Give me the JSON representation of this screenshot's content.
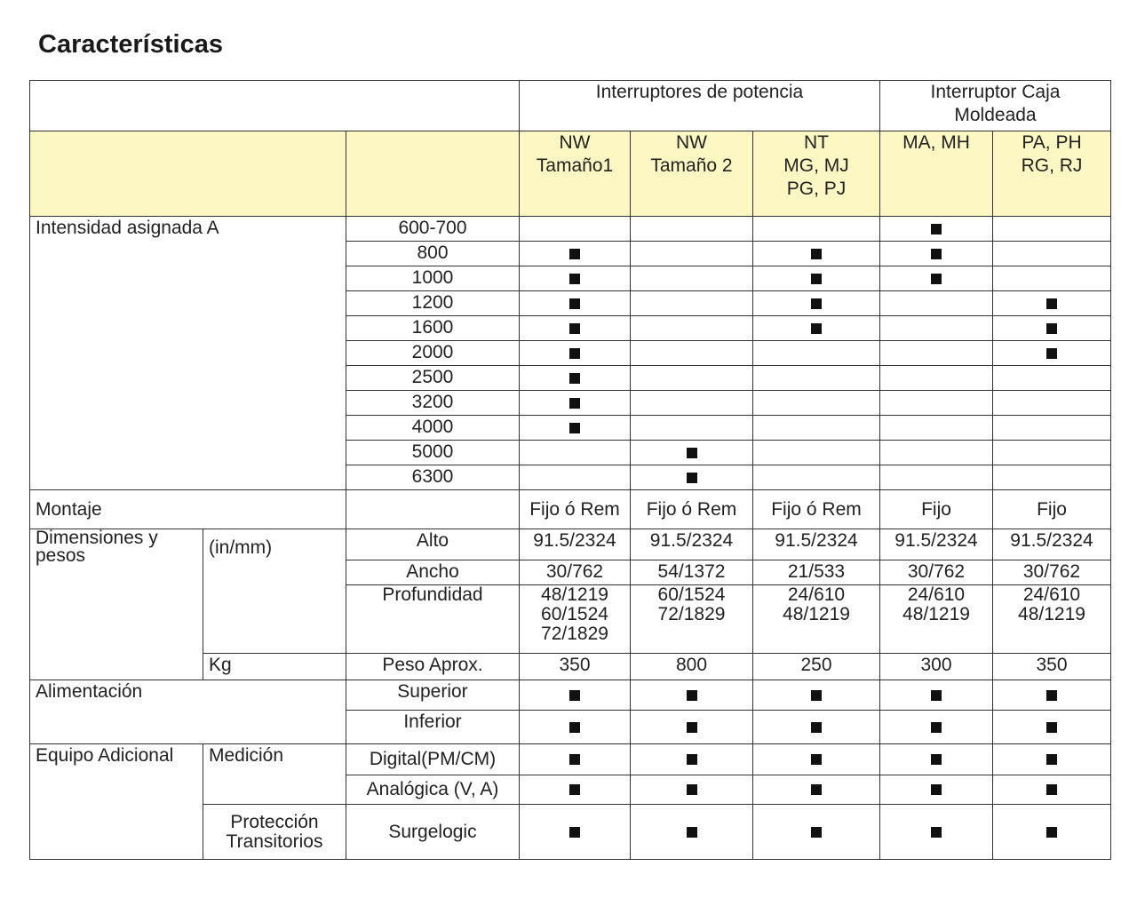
{
  "title": "Características",
  "header": {
    "group1": "Interruptores de potencia",
    "group2": "Interruptor Caja\nMoldeada",
    "columns": [
      "NW\nTamaño1",
      "NW\nTamaño 2",
      "NT\nMG, MJ\nPG, PJ",
      "MA, MH",
      "PA, PH\nRG, RJ"
    ]
  },
  "mark_symbol": "filled-square",
  "intensity": {
    "label": "Intensidad asignada  A",
    "rows": [
      {
        "value": "600-700",
        "marks": [
          0,
          0,
          0,
          1,
          0
        ]
      },
      {
        "value": "800",
        "marks": [
          1,
          0,
          1,
          1,
          0
        ]
      },
      {
        "value": "1000",
        "marks": [
          1,
          0,
          1,
          1,
          0
        ]
      },
      {
        "value": "1200",
        "marks": [
          1,
          0,
          1,
          0,
          1
        ]
      },
      {
        "value": "1600",
        "marks": [
          1,
          0,
          1,
          0,
          1
        ]
      },
      {
        "value": "2000",
        "marks": [
          1,
          0,
          0,
          0,
          1
        ]
      },
      {
        "value": "2500",
        "marks": [
          1,
          0,
          0,
          0,
          0
        ]
      },
      {
        "value": "3200",
        "marks": [
          1,
          0,
          0,
          0,
          0
        ]
      },
      {
        "value": "4000",
        "marks": [
          1,
          0,
          0,
          0,
          0
        ]
      },
      {
        "value": "5000",
        "marks": [
          0,
          1,
          0,
          0,
          0
        ]
      },
      {
        "value": "6300",
        "marks": [
          0,
          1,
          0,
          0,
          0
        ]
      }
    ]
  },
  "mounting": {
    "label": "Montaje",
    "values": [
      "Fijo ó Rem",
      "Fijo ó Rem",
      "Fijo ó Rem",
      "Fijo",
      "Fijo"
    ]
  },
  "dimensions": {
    "label": "Dimensiones y\npesos",
    "unit_label": "(in/mm)",
    "rows": [
      {
        "label": "Alto",
        "values": [
          "91.5/2324",
          "91.5/2324",
          "91.5/2324",
          "91.5/2324",
          "91.5/2324"
        ]
      },
      {
        "label": "Ancho",
        "values": [
          "30/762",
          "54/1372",
          "21/533",
          "30/762",
          "30/762"
        ]
      },
      {
        "label": "Profundidad",
        "values": [
          "48/1219\n60/1524\n72/1829",
          "60/1524\n72/1829",
          "24/610\n48/1219",
          "24/610\n48/1219",
          "24/610\n48/1219"
        ]
      }
    ],
    "kg_label": "Kg",
    "weight": {
      "label": "Peso Aprox.",
      "values": [
        "350",
        "800",
        "250",
        "300",
        "350"
      ]
    }
  },
  "power_supply": {
    "label": "Alimentación",
    "rows": [
      {
        "label": "Superior",
        "marks": [
          1,
          1,
          1,
          1,
          1
        ]
      },
      {
        "label": "Inferior",
        "marks": [
          1,
          1,
          1,
          1,
          1
        ]
      }
    ]
  },
  "extra": {
    "label": "Equipo Adicional",
    "measurement_label": "Medición",
    "rows": [
      {
        "label": "Digital(PM/CM)",
        "marks": [
          1,
          1,
          1,
          1,
          1
        ]
      },
      {
        "label": "Analógica (V, A)",
        "marks": [
          1,
          1,
          1,
          1,
          1
        ]
      }
    ],
    "protection_label": "Protección\nTransitorios",
    "protection_row": {
      "label": "Surgelogic",
      "marks": [
        1,
        1,
        1,
        1,
        1
      ]
    }
  }
}
